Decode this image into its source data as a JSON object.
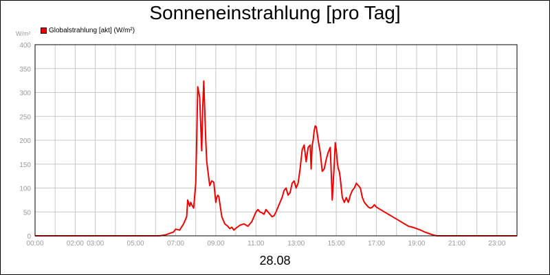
{
  "chart_data": {
    "type": "line",
    "title": "Sonneneinstrahlung [pro Tag]",
    "ylabel": "W/m²",
    "xlabel": "28.08",
    "ylim": [
      0,
      400
    ],
    "xlim_hours": [
      0,
      24
    ],
    "grid": true,
    "legend_position": "top-left",
    "y_ticks": [
      "0",
      "50",
      "100",
      "150",
      "200",
      "250",
      "300",
      "350",
      "400"
    ],
    "x_ticks": [
      {
        "hour": 0,
        "label": "00:00"
      },
      {
        "hour": 2,
        "label": "02:00"
      },
      {
        "hour": 3,
        "label": "03:00"
      },
      {
        "hour": 5,
        "label": "05:00"
      },
      {
        "hour": 7,
        "label": "07:00"
      },
      {
        "hour": 9,
        "label": "09:00"
      },
      {
        "hour": 11,
        "label": "11:00"
      },
      {
        "hour": 13,
        "label": "13:00"
      },
      {
        "hour": 15,
        "label": "15:00"
      },
      {
        "hour": 17,
        "label": "17:00"
      },
      {
        "hour": 19,
        "label": "19:00"
      },
      {
        "hour": 21,
        "label": "21:00"
      },
      {
        "hour": 23,
        "label": "23:00"
      }
    ],
    "series": [
      {
        "name": "Globalstrahlung [akt] (W/m²)",
        "color": "#ee0000",
        "x": [
          0,
          6.2,
          6.5,
          6.9,
          7.0,
          7.2,
          7.4,
          7.55,
          7.6,
          7.7,
          7.75,
          7.8,
          7.9,
          8.0,
          8.05,
          8.1,
          8.2,
          8.25,
          8.3,
          8.35,
          8.4,
          8.5,
          8.55,
          8.6,
          8.7,
          8.8,
          8.9,
          9.0,
          9.05,
          9.1,
          9.15,
          9.3,
          9.45,
          9.6,
          9.7,
          9.8,
          9.9,
          10.0,
          10.2,
          10.4,
          10.6,
          10.8,
          10.9,
          11.0,
          11.1,
          11.2,
          11.3,
          11.4,
          11.5,
          11.6,
          11.7,
          11.8,
          11.9,
          12.0,
          12.1,
          12.2,
          12.3,
          12.4,
          12.5,
          12.6,
          12.7,
          12.8,
          12.9,
          13.0,
          13.1,
          13.2,
          13.3,
          13.4,
          13.5,
          13.6,
          13.7,
          13.75,
          13.8,
          13.85,
          13.9,
          13.95,
          14.0,
          14.05,
          14.1,
          14.2,
          14.3,
          14.4,
          14.5,
          14.6,
          14.7,
          14.8,
          14.9,
          14.95,
          15.0,
          15.05,
          15.1,
          15.15,
          15.2,
          15.3,
          15.4,
          15.5,
          15.6,
          15.7,
          15.8,
          15.9,
          16.0,
          16.1,
          16.2,
          16.3,
          16.4,
          16.5,
          16.6,
          16.7,
          16.8,
          16.9,
          17.0,
          17.2,
          17.4,
          17.6,
          17.8,
          18.0,
          18.2,
          18.4,
          18.6,
          18.8,
          19.0,
          19.2,
          19.4,
          19.6,
          19.8,
          20.0,
          20.2,
          24.0
        ],
        "values": [
          0,
          0,
          2,
          8,
          14,
          12,
          25,
          40,
          75,
          62,
          70,
          65,
          58,
          110,
          200,
          312,
          290,
          230,
          178,
          270,
          324,
          200,
          155,
          138,
          105,
          115,
          112,
          70,
          80,
          85,
          82,
          40,
          25,
          20,
          15,
          18,
          12,
          16,
          22,
          25,
          20,
          30,
          40,
          50,
          55,
          50,
          48,
          45,
          55,
          50,
          45,
          40,
          42,
          50,
          60,
          70,
          80,
          95,
          100,
          85,
          90,
          110,
          115,
          100,
          110,
          140,
          180,
          190,
          155,
          185,
          190,
          140,
          190,
          200,
          220,
          230,
          228,
          215,
          200,
          175,
          135,
          140,
          160,
          175,
          185,
          75,
          150,
          195,
          180,
          155,
          140,
          135,
          120,
          80,
          70,
          80,
          70,
          85,
          95,
          100,
          110,
          105,
          100,
          80,
          70,
          65,
          60,
          58,
          60,
          65,
          60,
          55,
          50,
          45,
          40,
          35,
          30,
          25,
          20,
          18,
          15,
          12,
          8,
          5,
          2,
          0,
          0,
          0
        ]
      }
    ]
  }
}
